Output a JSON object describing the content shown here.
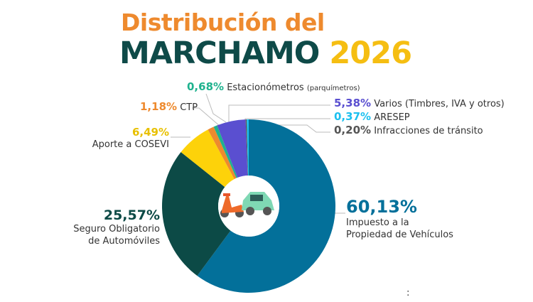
{
  "title": {
    "line1": "Distribución del",
    "line2": "MARCHAMO",
    "year": "2026"
  },
  "colors": {
    "title_orange": "#ee8a2e",
    "title_green": "#0e4a48",
    "title_yellow": "#f5be12"
  },
  "chart_data": {
    "type": "pie",
    "donut": true,
    "start": "top",
    "direction": "clockwise",
    "center_icon": "scooter-and-car-icon",
    "slices": [
      {
        "label": "Impuesto a la Propiedad de Vehículos",
        "value": 60.13,
        "display": "60,13%",
        "color": "#03709a"
      },
      {
        "label": "Seguro Obligatorio de Automóviles",
        "value": 25.57,
        "display": "25,57%",
        "color": "#0c4a46"
      },
      {
        "label": "Aporte a COSEVI",
        "value": 6.49,
        "display": "6,49%",
        "color": "#fdd20a"
      },
      {
        "label": "CTP",
        "value": 1.18,
        "display": "1,18%",
        "color": "#ee8a2e"
      },
      {
        "label": "Estacionómetros",
        "sublabel": "(parquímetros)",
        "value": 0.68,
        "display": "0,68%",
        "color": "#1fb28e"
      },
      {
        "label": "Varios (Timbres, IVA y otros)",
        "value": 5.38,
        "display": "5,38%",
        "color": "#5a4fd0"
      },
      {
        "label": "Infracciones de tránsito",
        "value": 0.2,
        "display": "0,20%",
        "color": "#555555"
      },
      {
        "label": "ARESEP",
        "value": 0.37,
        "display": "0,37%",
        "color": "#1cc0ef"
      }
    ],
    "label_lines": {
      "impuesto": [
        "Impuesto a la",
        "Propiedad de Vehículos"
      ],
      "seguro": [
        "Seguro Obligatorio",
        "de Automóviles"
      ]
    }
  },
  "footer_mark": ":"
}
